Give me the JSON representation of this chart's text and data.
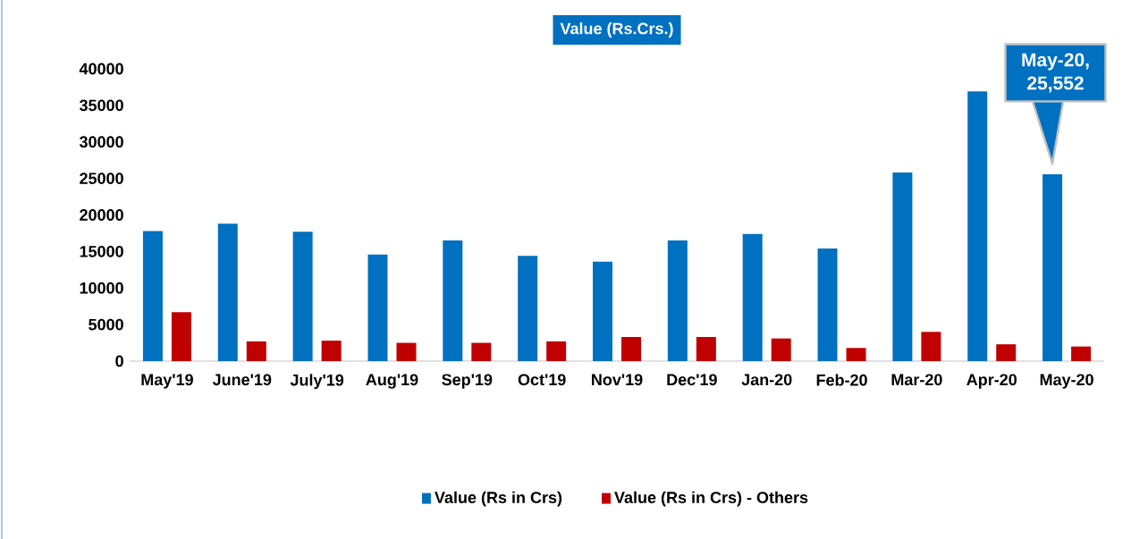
{
  "chart_data": {
    "type": "bar",
    "title": "Value (Rs.Crs.)",
    "categories": [
      "May'19",
      "June'19",
      "July'19",
      "Aug'19",
      "Sep'19",
      "Oct'19",
      "Nov'19",
      "Dec'19",
      "Jan-20",
      "Feb-20",
      "Mar-20",
      "Apr-20",
      "May-20"
    ],
    "series": [
      {
        "name": "Value (Rs in Crs)",
        "color": "#0070c0",
        "values": [
          17800,
          18800,
          17700,
          14600,
          16500,
          14400,
          13600,
          16500,
          17400,
          15400,
          25800,
          36900,
          25552
        ]
      },
      {
        "name": "Value (Rs in Crs) - Others",
        "color": "#c00000",
        "values": [
          6700,
          2700,
          2800,
          2500,
          2500,
          2700,
          3300,
          3300,
          3100,
          1800,
          4000,
          2300,
          2000
        ]
      }
    ],
    "ylim": [
      0,
      40000
    ],
    "yticks": [
      0,
      5000,
      10000,
      15000,
      20000,
      25000,
      30000,
      35000,
      40000
    ],
    "grid": false,
    "legend": "bottom",
    "annotations": [
      "May-20, 25,552"
    ]
  }
}
